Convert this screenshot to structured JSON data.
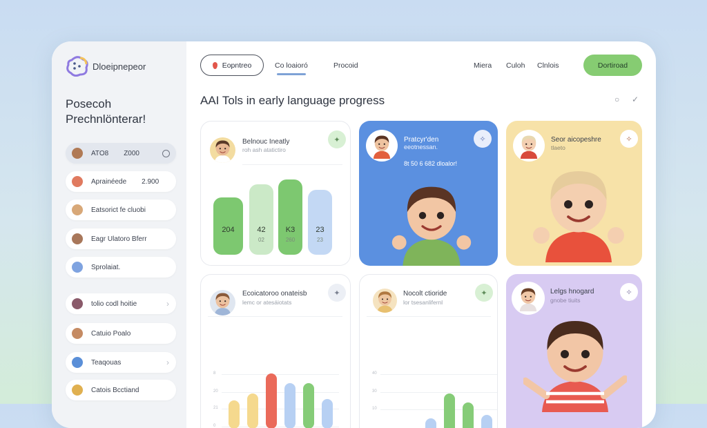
{
  "app": {
    "brand": "Dloeipnepeor",
    "greeting_line1": "Posecoh",
    "greeting_line2": "Prechnlönterar!"
  },
  "sidebar": {
    "items": [
      {
        "label": "ATO8",
        "value": "Z000",
        "icon": "child-avatar-icon",
        "trailing": "radio-icon",
        "active": true,
        "color": "#b07a55"
      },
      {
        "label": "Aprainéede",
        "value": "2.900",
        "icon": "puzzle-icon",
        "color": "#e07a5f"
      },
      {
        "label": "Eatsorict fe cluobi",
        "icon": "child-avatar-icon",
        "color": "#d8a878"
      },
      {
        "label": "Eagr Ulatoro Bferr",
        "icon": "child-avatar-icon",
        "color": "#a8775a"
      },
      {
        "label": "Sprolaiat.",
        "icon": "toys-icon",
        "color": "#7fa3e0"
      },
      {
        "label": "tolio codl hoitie",
        "icon": "child-avatar-icon",
        "trailing": "chevron-right-icon",
        "color": "#8a5a6a"
      },
      {
        "label": "Catuio Poalo",
        "icon": "child-avatar-icon",
        "color": "#c58b63"
      },
      {
        "label": "Teaqouas",
        "icon": "blocks-icon",
        "trailing": "chevron-right-icon",
        "color": "#5a8fd8"
      },
      {
        "label": "Catois Bcctiand",
        "icon": "toys-icon",
        "color": "#e0b050"
      }
    ]
  },
  "nav": {
    "pill": "Eopntreo",
    "tabs": [
      "Co loaioró",
      "Procoid"
    ],
    "active_tab": 0,
    "links": [
      "Miera",
      "Culoh",
      "Clnlois"
    ],
    "cta": "Dortiroad"
  },
  "main": {
    "title": "AAI Tols in early language progress"
  },
  "cards": [
    {
      "title": "Belnouc Ineatly",
      "subtitle": "roh ash atatictiro",
      "bars": [
        {
          "label": "204",
          "sub": "",
          "level": 0.52,
          "color": "#7dc870"
        },
        {
          "label": "42",
          "sub": "02",
          "level": 0.64,
          "color": "#cbe9c7"
        },
        {
          "label": "K3",
          "sub": "260",
          "level": 0.68,
          "color": "#7dc870"
        },
        {
          "label": "23",
          "sub": "23",
          "level": 0.59,
          "color": "#c3d8f4"
        }
      ]
    },
    {
      "title": "Pratcyr'den",
      "subtitle": "eeotnessan.",
      "note": "8t 50 6 682 dloalor!",
      "color": "#5b90e0"
    },
    {
      "title": "Seor aicopeshre",
      "subtitle": "tlaeto",
      "color": "#f7e2a8"
    },
    {
      "title": "Ecoicatoroo onateisb",
      "subtitle": "lemc or atesáiotats",
      "axis": [
        "8",
        "20",
        "21",
        "0"
      ],
      "bars": [
        {
          "level": 0.5,
          "color": "#f5d98e"
        },
        {
          "level": 0.62,
          "color": "#f5d98e"
        },
        {
          "level": 0.98,
          "color": "#ea6a5a"
        },
        {
          "level": 0.8,
          "color": "#b7d0f3"
        },
        {
          "level": 0.8,
          "color": "#86cc78"
        },
        {
          "level": 0.52,
          "color": "#b7d0f3"
        }
      ],
      "dots": [
        "0",
        "0",
        "0",
        "8",
        "0",
        "0"
      ]
    },
    {
      "title": "Nocolt ctioride",
      "subtitle": "lor tsesanlifernl",
      "axis": [
        "40",
        "30",
        "10"
      ],
      "bars": [
        {
          "level": 0.45,
          "color": "#b7d0f3"
        },
        {
          "level": 0.85,
          "color": "#86cc78"
        },
        {
          "level": 0.7,
          "color": "#86cc78"
        },
        {
          "level": 0.5,
          "color": "#b7d0f3"
        },
        {
          "level": 0.5,
          "color": "#86cc78"
        },
        {
          "level": 0.5,
          "color": "#b7d0f3"
        }
      ]
    },
    {
      "title": "Lelgs hnogard",
      "subtitle": "gnobe tiuits",
      "color": "#d8cbf2"
    }
  ]
}
